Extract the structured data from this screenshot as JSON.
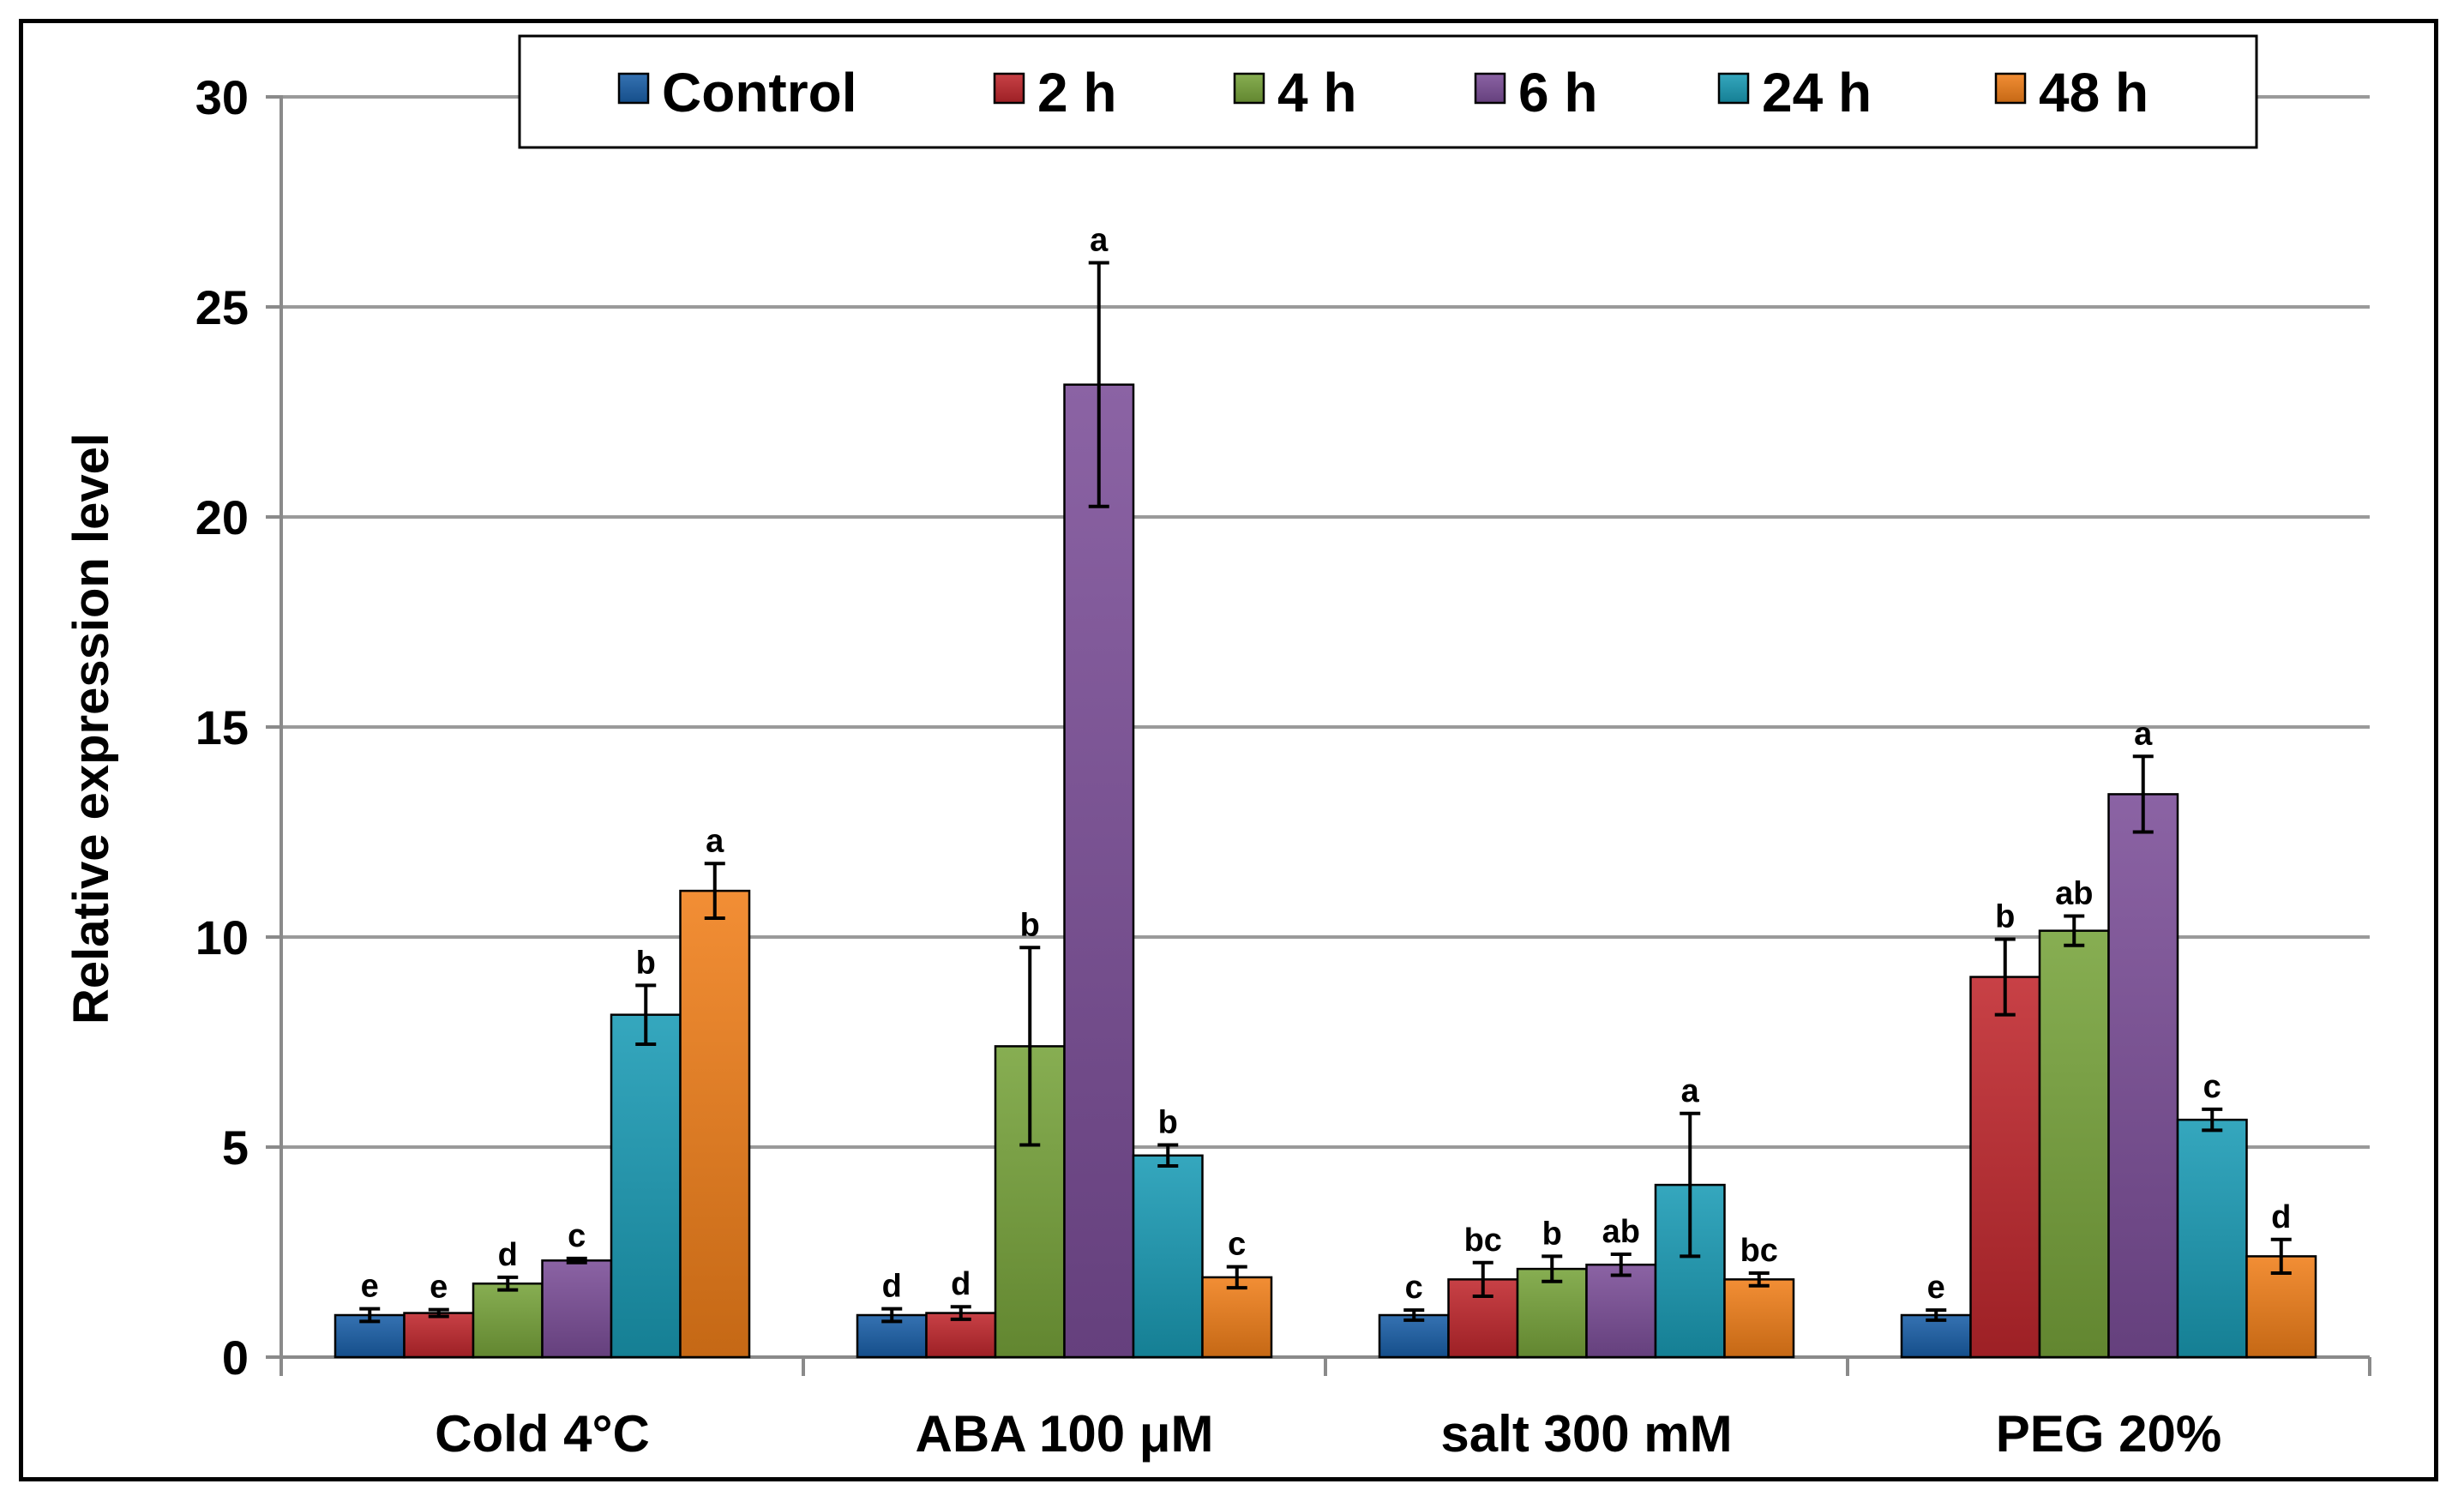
{
  "chart_data": {
    "type": "bar",
    "title": "",
    "xlabel": "",
    "ylabel": "Relative expression level",
    "ylim": [
      0,
      30
    ],
    "yticks": [
      0,
      5,
      10,
      15,
      20,
      25,
      30
    ],
    "grid": true,
    "legend_position": "top",
    "categories": [
      "Cold 4°C",
      "ABA 100 μM",
      "salt 300 mM",
      "PEG 20%"
    ],
    "series": [
      {
        "name": "Control",
        "color": "#1a5fa8",
        "values": [
          1.0,
          1.0,
          1.0,
          1.0
        ],
        "errors": [
          0.15,
          0.15,
          0.12,
          0.12
        ],
        "labels": [
          "e",
          "d",
          "c",
          "e"
        ]
      },
      {
        "name": "2 h",
        "color": "#c0272d",
        "values": [
          1.05,
          1.05,
          1.85,
          9.05
        ],
        "errors": [
          0.08,
          0.15,
          0.4,
          0.9
        ],
        "labels": [
          "e",
          "d",
          "bc",
          "b"
        ]
      },
      {
        "name": "4 h",
        "color": "#77a33a",
        "values": [
          1.75,
          7.4,
          2.1,
          10.15
        ],
        "errors": [
          0.15,
          2.35,
          0.3,
          0.35
        ],
        "labels": [
          "d",
          "b",
          "b",
          "ab"
        ]
      },
      {
        "name": "6 h",
        "color": "#7b4e98",
        "values": [
          2.3,
          23.15,
          2.2,
          13.4
        ],
        "errors": [
          0.05,
          2.9,
          0.25,
          0.9
        ],
        "labels": [
          "c",
          "a",
          "ab",
          "a"
        ]
      },
      {
        "name": "24 h",
        "color": "#1a9bb5",
        "values": [
          8.15,
          4.8,
          4.1,
          5.65
        ],
        "errors": [
          0.7,
          0.25,
          1.7,
          0.25
        ],
        "labels": [
          "b",
          "b",
          "a",
          "c"
        ]
      },
      {
        "name": "48 h",
        "color": "#f07f1a",
        "values": [
          11.1,
          1.9,
          1.85,
          2.4
        ],
        "errors": [
          0.65,
          0.25,
          0.15,
          0.4
        ],
        "labels": [
          "a",
          "c",
          "bc",
          "d"
        ]
      }
    ]
  }
}
